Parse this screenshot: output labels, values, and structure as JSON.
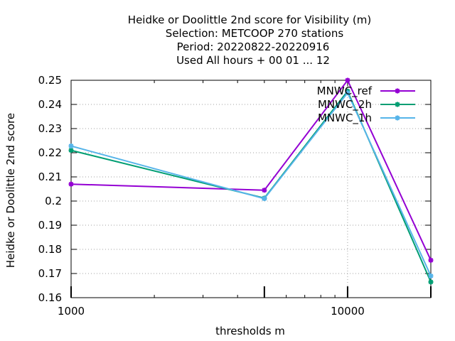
{
  "chart_data": {
    "type": "line",
    "title_lines": [
      "Heidke or Doolittle 2nd score  for Visibility (m)",
      "Selection: METCOOP    270 stations",
      "Period: 20220822-20220916",
      "Used  All hours + 00 01 ... 12"
    ],
    "xlabel": "thresholds m",
    "ylabel": "Heidke or Doolittle 2nd score",
    "xscale": "log",
    "xlim": [
      1000,
      20000
    ],
    "ylim": [
      0.16,
      0.25
    ],
    "x_ticks": [
      1000,
      10000
    ],
    "x_tick_labels": [
      "1000",
      "10000"
    ],
    "y_ticks": [
      0.16,
      0.17,
      0.18,
      0.19,
      0.2,
      0.21,
      0.22,
      0.23,
      0.24,
      0.25
    ],
    "y_tick_labels": [
      "0.16",
      "0.17",
      "0.18",
      "0.19",
      "0.2",
      "0.21",
      "0.22",
      "0.23",
      "0.24",
      "0.25"
    ],
    "grid": true,
    "legend_position": "top-right",
    "x": [
      1000,
      5000,
      10000,
      20000
    ],
    "series": [
      {
        "name": "MNWC_ref",
        "color": "#9400d3",
        "values": [
          0.207,
          0.2045,
          0.25,
          0.1755
        ]
      },
      {
        "name": "MNWC_2h",
        "color": "#009e73",
        "values": [
          0.221,
          0.2012,
          0.2455,
          0.1665
        ]
      },
      {
        "name": "MNWC_1h",
        "color": "#56b4e9",
        "values": [
          0.2228,
          0.201,
          0.2448,
          0.169
        ]
      }
    ]
  }
}
